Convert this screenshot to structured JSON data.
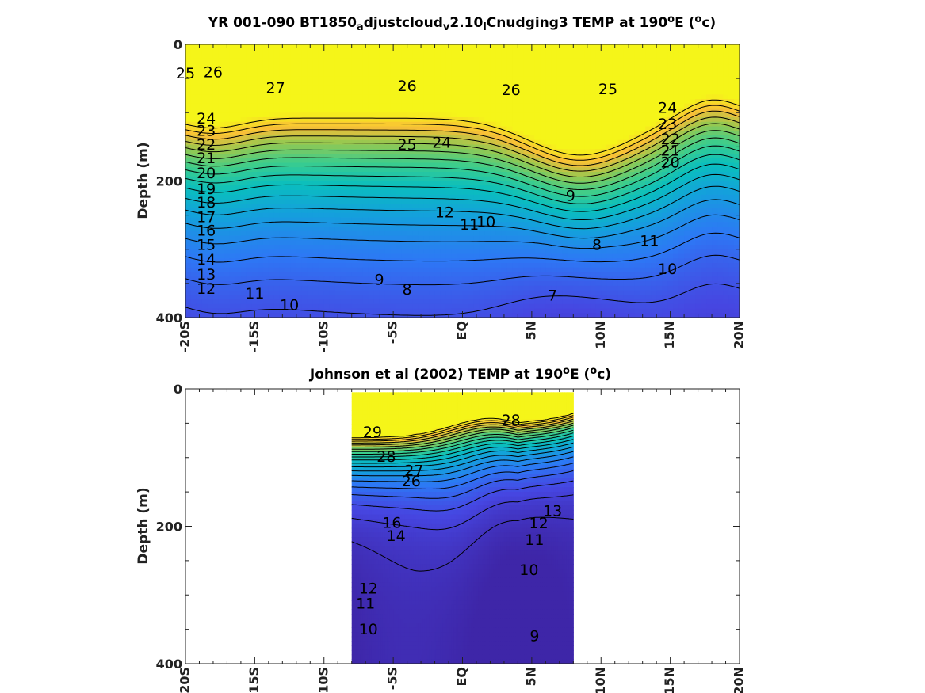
{
  "chart_data": [
    {
      "type": "heatmap",
      "title_parts": [
        {
          "t": "YR 001-090 BT1850"
        },
        {
          "t": "a",
          "sub": true
        },
        {
          "t": "djustcloud"
        },
        {
          "t": "v",
          "sub": true
        },
        {
          "t": "2.10"
        },
        {
          "t": "l",
          "sub": true
        },
        {
          "t": "Cnudging3 TEMP at 190"
        },
        {
          "t": "o",
          "sup": true
        },
        {
          "t": "E ("
        },
        {
          "t": "o",
          "sup": true
        },
        {
          "t": "c)"
        }
      ],
      "ylabel": "Depth (m)",
      "x_ticks": [
        "-20S",
        "-15S",
        "-10S",
        "-5S",
        "EQ",
        "5N",
        "10N",
        "15N",
        "20N"
      ],
      "y_ticks": [
        "0",
        "200",
        "400"
      ],
      "xlim": [
        -20,
        20
      ],
      "ylim": [
        0,
        400
      ],
      "y_reversed": true,
      "colorscale": "parula",
      "temperature_range": [
        7,
        27
      ],
      "surface_temp": 27,
      "contour_levels": [
        7,
        8,
        9,
        10,
        11,
        12,
        13,
        14,
        15,
        16,
        17,
        18,
        19,
        20,
        21,
        22,
        23,
        24,
        25,
        26,
        27
      ],
      "contour_labels": [
        {
          "v": "25",
          "lat": -20,
          "z": 42
        },
        {
          "v": "26",
          "lat": -18,
          "z": 40
        },
        {
          "v": "27",
          "lat": -13.5,
          "z": 63
        },
        {
          "v": "26",
          "lat": -4,
          "z": 60
        },
        {
          "v": "26",
          "lat": 3.5,
          "z": 66
        },
        {
          "v": "25",
          "lat": 10.5,
          "z": 65
        },
        {
          "v": "24",
          "lat": -18.5,
          "z": 108
        },
        {
          "v": "23",
          "lat": -18.5,
          "z": 126
        },
        {
          "v": "22",
          "lat": -18.5,
          "z": 146
        },
        {
          "v": "21",
          "lat": -18.5,
          "z": 166
        },
        {
          "v": "20",
          "lat": -18.5,
          "z": 188
        },
        {
          "v": "19",
          "lat": -18.5,
          "z": 211
        },
        {
          "v": "18",
          "lat": -18.5,
          "z": 231
        },
        {
          "v": "17",
          "lat": -18.5,
          "z": 252
        },
        {
          "v": "16",
          "lat": -18.5,
          "z": 272
        },
        {
          "v": "15",
          "lat": -18.5,
          "z": 293
        },
        {
          "v": "14",
          "lat": -18.5,
          "z": 314
        },
        {
          "v": "13",
          "lat": -18.5,
          "z": 336
        },
        {
          "v": "12",
          "lat": -18.5,
          "z": 357
        },
        {
          "v": "11",
          "lat": -15,
          "z": 364
        },
        {
          "v": "10",
          "lat": -12.5,
          "z": 381
        },
        {
          "v": "25",
          "lat": -4,
          "z": 146
        },
        {
          "v": "24",
          "lat": -1.5,
          "z": 143
        },
        {
          "v": "12",
          "lat": -1.3,
          "z": 245
        },
        {
          "v": "11",
          "lat": 0.5,
          "z": 263
        },
        {
          "v": "10",
          "lat": 1.7,
          "z": 259
        },
        {
          "v": "9",
          "lat": -6,
          "z": 344
        },
        {
          "v": "8",
          "lat": -4,
          "z": 358
        },
        {
          "v": "9",
          "lat": 7.8,
          "z": 221
        },
        {
          "v": "8",
          "lat": 9.7,
          "z": 293
        },
        {
          "v": "7",
          "lat": 6.5,
          "z": 367
        },
        {
          "v": "24",
          "lat": 14.8,
          "z": 92
        },
        {
          "v": "23",
          "lat": 14.8,
          "z": 116
        },
        {
          "v": "22",
          "lat": 15,
          "z": 138
        },
        {
          "v": "21",
          "lat": 15,
          "z": 155
        },
        {
          "v": "20",
          "lat": 15,
          "z": 172
        },
        {
          "v": "11",
          "lat": 13.5,
          "z": 287
        },
        {
          "v": "10",
          "lat": 14.8,
          "z": 328
        }
      ]
    },
    {
      "type": "heatmap",
      "title_parts": [
        {
          "t": "Johnson et al (2002) TEMP at 190"
        },
        {
          "t": "o",
          "sup": true
        },
        {
          "t": "E ("
        },
        {
          "t": "o",
          "sup": true
        },
        {
          "t": "c)"
        }
      ],
      "ylabel": "Depth (m)",
      "x_ticks": [
        "-20S",
        "-15S",
        "-10S",
        "-5S",
        "EQ",
        "5N",
        "10N",
        "15N",
        "20N"
      ],
      "y_ticks": [
        "0",
        "200",
        "400"
      ],
      "xlim": [
        -20,
        20
      ],
      "ylim": [
        0,
        400
      ],
      "y_reversed": true,
      "data_lat_range": [
        -8,
        8
      ],
      "data_depth_range": [
        5,
        400
      ],
      "colorscale": "parula",
      "temperature_range": [
        8,
        29.5
      ],
      "surface_temp": 29.5,
      "contour_levels": [
        9,
        10,
        11,
        12,
        13,
        14,
        15,
        16,
        17,
        18,
        19,
        20,
        21,
        22,
        23,
        24,
        25,
        26,
        27,
        28,
        29
      ],
      "contour_labels": [
        {
          "v": "29",
          "lat": -6.5,
          "z": 62
        },
        {
          "v": "28",
          "lat": -5.5,
          "z": 98
        },
        {
          "v": "28",
          "lat": 3.5,
          "z": 45
        },
        {
          "v": "27",
          "lat": -3.5,
          "z": 118
        },
        {
          "v": "26",
          "lat": -3.7,
          "z": 134
        },
        {
          "v": "16",
          "lat": -5.1,
          "z": 194
        },
        {
          "v": "14",
          "lat": -4.8,
          "z": 213
        },
        {
          "v": "13",
          "lat": 6.5,
          "z": 177
        },
        {
          "v": "12",
          "lat": 5.5,
          "z": 195
        },
        {
          "v": "11",
          "lat": 5.2,
          "z": 219
        },
        {
          "v": "10",
          "lat": 4.8,
          "z": 263
        },
        {
          "v": "12",
          "lat": -6.8,
          "z": 290
        },
        {
          "v": "11",
          "lat": -7,
          "z": 312
        },
        {
          "v": "10",
          "lat": -6.8,
          "z": 349
        },
        {
          "v": "9",
          "lat": 5.2,
          "z": 359
        }
      ]
    }
  ]
}
